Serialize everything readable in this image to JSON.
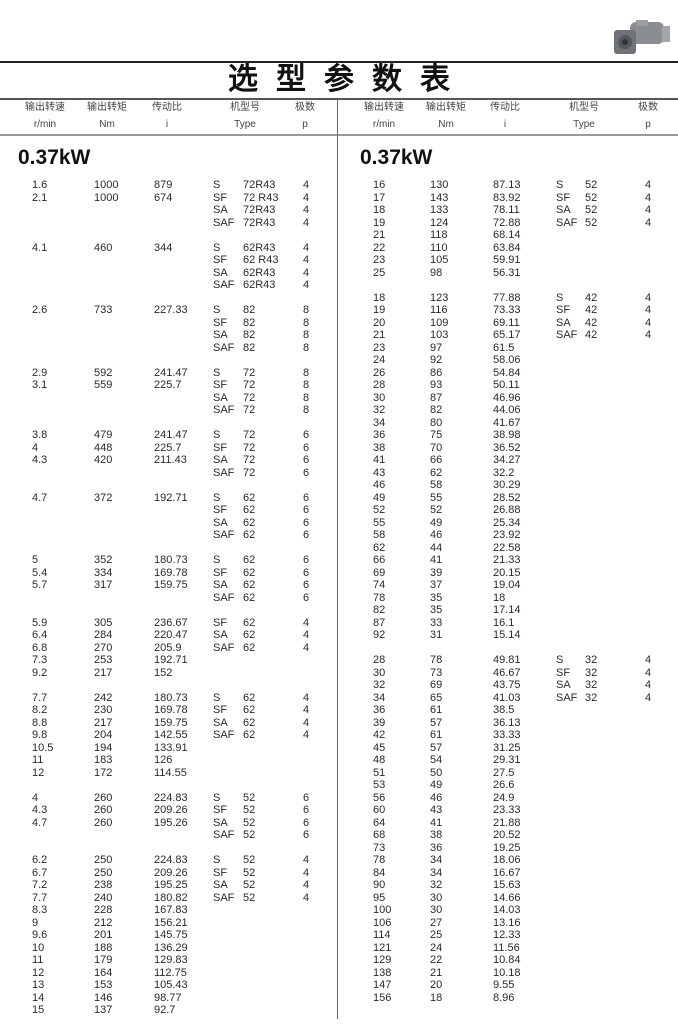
{
  "title": "选型参数表",
  "colors": {
    "text": "#2a2a2a",
    "rule": "#222222"
  },
  "product_image": "gear-motor-icon",
  "headers": [
    {
      "cn": "输出转速",
      "unit": "r/min"
    },
    {
      "cn": "输出转矩",
      "unit": "Nm"
    },
    {
      "cn": "传动比",
      "unit": "i"
    },
    {
      "cn": "机型号",
      "unit": "Type"
    },
    {
      "cn": "极数",
      "unit": "p"
    }
  ],
  "left": {
    "power": "0.37kW",
    "groups": [
      {
        "rows": [
          [
            "1.6",
            "1000",
            "879"
          ],
          [
            "2.1",
            "1000",
            "674"
          ]
        ],
        "types": [
          [
            "S",
            "72R43",
            "4"
          ],
          [
            "SF",
            "72 R43",
            "4"
          ],
          [
            "SA",
            "72R43",
            "4"
          ],
          [
            "SAF",
            "72R43",
            "4"
          ]
        ]
      },
      {
        "rows": [
          [
            "4.1",
            "460",
            "344"
          ]
        ],
        "types": [
          [
            "S",
            "62R43",
            "4"
          ],
          [
            "SF",
            "62 R43",
            "4"
          ],
          [
            "SA",
            "62R43",
            "4"
          ],
          [
            "SAF",
            "62R43",
            "4"
          ]
        ]
      },
      {
        "rows": [
          [
            "2.6",
            "733",
            "227.33"
          ]
        ],
        "types": [
          [
            "S",
            "82",
            "8"
          ],
          [
            "SF",
            "82",
            "8"
          ],
          [
            "SA",
            "82",
            "8"
          ],
          [
            "SAF",
            "82",
            "8"
          ]
        ]
      },
      {
        "rows": [
          [
            "2.9",
            "592",
            "241.47"
          ],
          [
            "3.1",
            "559",
            "225.7"
          ]
        ],
        "types": [
          [
            "S",
            "72",
            "8"
          ],
          [
            "SF",
            "72",
            "8"
          ],
          [
            "SA",
            "72",
            "8"
          ],
          [
            "SAF",
            "72",
            "8"
          ]
        ]
      },
      {
        "rows": [
          [
            "3.8",
            "479",
            "241.47"
          ],
          [
            "4",
            "448",
            "225.7"
          ],
          [
            "4.3",
            "420",
            "211.43"
          ]
        ],
        "types": [
          [
            "S",
            "72",
            "6"
          ],
          [
            "SF",
            "72",
            "6"
          ],
          [
            "SA",
            "72",
            "6"
          ],
          [
            "SAF",
            "72",
            "6"
          ]
        ]
      },
      {
        "rows": [
          [
            "4.7",
            "372",
            "192.71"
          ]
        ],
        "types": [
          [
            "S",
            "62",
            "6"
          ],
          [
            "SF",
            "62",
            "6"
          ],
          [
            "SA",
            "62",
            "6"
          ],
          [
            "SAF",
            "62",
            "6"
          ]
        ]
      },
      {
        "rows": [
          [
            "5",
            "352",
            "180.73"
          ],
          [
            "5.4",
            "334",
            "169.78"
          ],
          [
            "5.7",
            "317",
            "159.75"
          ]
        ],
        "types": [
          [
            "S",
            "62",
            "6"
          ],
          [
            "SF",
            "62",
            "6"
          ],
          [
            "SA",
            "62",
            "6"
          ],
          [
            "SAF",
            "62",
            "6"
          ]
        ]
      },
      {
        "rows": [
          [
            "5.9",
            "305",
            "236.67"
          ],
          [
            "6.4",
            "284",
            "220.47"
          ],
          [
            "6.8",
            "270",
            "205.9"
          ],
          [
            "7.3",
            "253",
            "192.71"
          ],
          [
            "9.2",
            "217",
            "152"
          ]
        ],
        "types": [
          [
            "SF",
            "62",
            "4"
          ],
          [
            "SA",
            "62",
            "4"
          ],
          [
            "SAF",
            "62",
            "4"
          ]
        ]
      },
      {
        "rows": [
          [
            "7.7",
            "242",
            "180.73"
          ],
          [
            "8.2",
            "230",
            "169.78"
          ],
          [
            "8.8",
            "217",
            "159.75"
          ],
          [
            "9.8",
            "204",
            "142.55"
          ],
          [
            "10.5",
            "194",
            "133.91"
          ],
          [
            "11",
            "183",
            "126"
          ],
          [
            "12",
            "172",
            "114.55"
          ]
        ],
        "types": [
          [
            "S",
            "62",
            "4"
          ],
          [
            "SF",
            "62",
            "4"
          ],
          [
            "SA",
            "62",
            "4"
          ],
          [
            "SAF",
            "62",
            "4"
          ]
        ]
      },
      {
        "rows": [
          [
            "4",
            "260",
            "224.83"
          ],
          [
            "4.3",
            "260",
            "209.26"
          ],
          [
            "4.7",
            "260",
            "195.26"
          ]
        ],
        "types": [
          [
            "S",
            "52",
            "6"
          ],
          [
            "SF",
            "52",
            "6"
          ],
          [
            "SA",
            "52",
            "6"
          ],
          [
            "SAF",
            "52",
            "6"
          ]
        ]
      },
      {
        "rows": [
          [
            "6.2",
            "250",
            "224.83"
          ],
          [
            "6.7",
            "250",
            "209.26"
          ],
          [
            "7.2",
            "238",
            "195.25"
          ],
          [
            "7.7",
            "240",
            "180.82"
          ],
          [
            "8.3",
            "228",
            "167.83"
          ],
          [
            "9",
            "212",
            "156.21"
          ],
          [
            "9.6",
            "201",
            "145.75"
          ],
          [
            "10",
            "188",
            "136.29"
          ],
          [
            "11",
            "179",
            "129.83"
          ],
          [
            "12",
            "164",
            "112.75"
          ],
          [
            "13",
            "153",
            "105.43"
          ],
          [
            "14",
            "146",
            "98.77"
          ],
          [
            "15",
            "137",
            "92.7"
          ]
        ],
        "types": [
          [
            "S",
            "52",
            "4"
          ],
          [
            "SF",
            "52",
            "4"
          ],
          [
            "SA",
            "52",
            "4"
          ],
          [
            "SAF",
            "52",
            "4"
          ]
        ]
      }
    ]
  },
  "right": {
    "power": "0.37kW",
    "groups": [
      {
        "rows": [
          [
            "16",
            "130",
            "87.13"
          ],
          [
            "17",
            "143",
            "83.92"
          ],
          [
            "18",
            "133",
            "78.11"
          ],
          [
            "19",
            "124",
            "72.88"
          ],
          [
            "21",
            "118",
            "68.14"
          ],
          [
            "22",
            "110",
            "63.84"
          ],
          [
            "23",
            "105",
            "59.91"
          ],
          [
            "25",
            "98",
            "56.31"
          ]
        ],
        "types": [
          [
            "S",
            "52",
            "4"
          ],
          [
            "SF",
            "52",
            "4"
          ],
          [
            "SA",
            "52",
            "4"
          ],
          [
            "SAF",
            "52",
            "4"
          ]
        ]
      },
      {
        "rows": [
          [
            "18",
            "123",
            "77.88"
          ],
          [
            "19",
            "116",
            "73.33"
          ],
          [
            "20",
            "109",
            "69.11"
          ],
          [
            "21",
            "103",
            "65.17"
          ],
          [
            "23",
            "97",
            "61.5"
          ],
          [
            "24",
            "92",
            "58.06"
          ],
          [
            "26",
            "86",
            "54.84"
          ],
          [
            "28",
            "93",
            "50.11"
          ],
          [
            "30",
            "87",
            "46.96"
          ],
          [
            "32",
            "82",
            "44.06"
          ],
          [
            "34",
            "80",
            "41.67"
          ],
          [
            "36",
            "75",
            "38.98"
          ],
          [
            "38",
            "70",
            "36.52"
          ],
          [
            "41",
            "66",
            "34.27"
          ],
          [
            "43",
            "62",
            "32.2"
          ],
          [
            "46",
            "58",
            "30.29"
          ],
          [
            "49",
            "55",
            "28.52"
          ],
          [
            "52",
            "52",
            "26.88"
          ],
          [
            "55",
            "49",
            "25.34"
          ],
          [
            "58",
            "46",
            "23.92"
          ],
          [
            "62",
            "44",
            "22.58"
          ],
          [
            "66",
            "41",
            "21.33"
          ],
          [
            "69",
            "39",
            "20.15"
          ],
          [
            "74",
            "37",
            "19.04"
          ],
          [
            "78",
            "35",
            "18"
          ],
          [
            "82",
            "35",
            "17.14"
          ],
          [
            "87",
            "33",
            "16.1"
          ],
          [
            "92",
            "31",
            "15.14"
          ]
        ],
        "types": [
          [
            "S",
            "42",
            "4"
          ],
          [
            "SF",
            "42",
            "4"
          ],
          [
            "SA",
            "42",
            "4"
          ],
          [
            "SAF",
            "42",
            "4"
          ]
        ]
      },
      {
        "rows": [
          [
            "28",
            "78",
            "49.81"
          ],
          [
            "30",
            "73",
            "46.67"
          ],
          [
            "32",
            "69",
            "43.75"
          ],
          [
            "34",
            "65",
            "41.03"
          ],
          [
            "36",
            "61",
            "38.5"
          ],
          [
            "39",
            "57",
            "36.13"
          ],
          [
            "42",
            "61",
            "33.33"
          ],
          [
            "45",
            "57",
            "31.25"
          ],
          [
            "48",
            "54",
            "29.31"
          ],
          [
            "51",
            "50",
            "27.5"
          ],
          [
            "53",
            "49",
            "26.6"
          ],
          [
            "56",
            "46",
            "24.9"
          ],
          [
            "60",
            "43",
            "23.33"
          ],
          [
            "64",
            "41",
            "21.88"
          ],
          [
            "68",
            "38",
            "20.52"
          ],
          [
            "73",
            "36",
            "19.25"
          ],
          [
            "78",
            "34",
            "18.06"
          ],
          [
            "84",
            "34",
            "16.67"
          ],
          [
            "90",
            "32",
            "15.63"
          ],
          [
            "95",
            "30",
            "14.66"
          ],
          [
            "100",
            "30",
            "14.03"
          ],
          [
            "106",
            "27",
            "13.16"
          ],
          [
            "114",
            "25",
            "12.33"
          ],
          [
            "121",
            "24",
            "11.56"
          ],
          [
            "129",
            "22",
            "10.84"
          ],
          [
            "138",
            "21",
            "10.18"
          ],
          [
            "147",
            "20",
            "9.55"
          ],
          [
            "156",
            "18",
            "8.96"
          ]
        ],
        "types": [
          [
            "S",
            "32",
            "4"
          ],
          [
            "SF",
            "32",
            "4"
          ],
          [
            "SA",
            "32",
            "4"
          ],
          [
            "SAF",
            "32",
            "4"
          ]
        ]
      }
    ]
  }
}
